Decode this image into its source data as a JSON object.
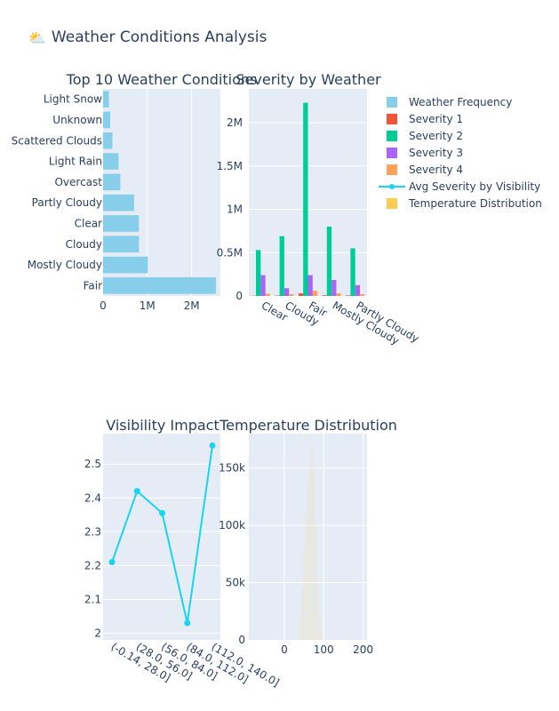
{
  "title": "Weather Conditions Analysis",
  "title_icon": "sun-behind-cloud-icon",
  "colors": {
    "frequency": "#87ceeb",
    "severity1": "#ef553b",
    "severity2": "#00cc96",
    "severity3": "#ab63fa",
    "severity4": "#ffa15a",
    "visibility": "#19d3f3",
    "temperature": "#fecb52",
    "plot_bg": "#e5ecf6"
  },
  "chart_data": [
    {
      "type": "bar",
      "orientation": "horizontal",
      "title": "Top 10 Weather Conditions",
      "categories": [
        "Fair",
        "Mostly Cloudy",
        "Cloudy",
        "Clear",
        "Partly Cloudy",
        "Overcast",
        "Light Rain",
        "Scattered Clouds",
        "Unknown",
        "Light Snow"
      ],
      "values": [
        2550000,
        1010000,
        810000,
        810000,
        700000,
        390000,
        350000,
        210000,
        160000,
        130000
      ],
      "xlim": [
        0,
        2650000
      ],
      "xticks": [
        0,
        1000000,
        2000000
      ],
      "xtick_labels": [
        "0",
        "1M",
        "2M"
      ],
      "series_name": "Weather Frequency"
    },
    {
      "type": "bar",
      "title": "Severity by Weather",
      "categories": [
        "Clear",
        "Cloudy",
        "Fair",
        "Mostly Cloudy",
        "Partly Cloudy"
      ],
      "series": [
        {
          "name": "Severity 1",
          "values": [
            3000,
            5000,
            30000,
            8000,
            6000
          ]
        },
        {
          "name": "Severity 2",
          "values": [
            530000,
            690000,
            2230000,
            800000,
            550000
          ]
        },
        {
          "name": "Severity 3",
          "values": [
            240000,
            90000,
            240000,
            185000,
            125000
          ]
        },
        {
          "name": "Severity 4",
          "values": [
            25000,
            20000,
            60000,
            30000,
            20000
          ]
        }
      ],
      "ylim": [
        0,
        2390000
      ],
      "yticks": [
        0,
        500000,
        1000000,
        1500000,
        2000000
      ],
      "ytick_labels": [
        "0",
        "0.5M",
        "1M",
        "1.5M",
        "2M"
      ]
    },
    {
      "type": "line",
      "title": "Visibility Impact",
      "series_name": "Avg Severity by Visibility",
      "categories": [
        "(-0.14, 28.0]",
        "(28.0, 56.0]",
        "(56.0, 84.0]",
        "(84.0, 112.0]",
        "(112.0, 140.0]"
      ],
      "values": [
        2.21,
        2.42,
        2.355,
        2.03,
        2.555
      ],
      "ylim": [
        1.98,
        2.59
      ],
      "yticks": [
        2,
        2.1,
        2.2,
        2.3,
        2.4,
        2.5
      ],
      "ytick_labels": [
        "2",
        "2.1",
        "2.2",
        "2.3",
        "2.4",
        "2.5"
      ]
    },
    {
      "type": "histogram",
      "title": "Temperature Distribution",
      "series_name": "Temperature Distribution",
      "x": [
        40,
        45,
        50,
        55,
        60,
        65,
        70,
        75,
        80,
        85,
        90,
        95
      ],
      "values": [
        20000,
        45000,
        80000,
        110000,
        135000,
        155000,
        170000,
        150000,
        100000,
        55000,
        20000,
        5000
      ],
      "xlim": [
        -90,
        210
      ],
      "xticks": [
        0,
        100,
        200
      ],
      "xtick_labels": [
        "0",
        "100",
        "200"
      ],
      "ylim": [
        0,
        180000
      ],
      "yticks": [
        0,
        50000,
        100000,
        150000
      ],
      "ytick_labels": [
        "0",
        "50k",
        "100k",
        "150k"
      ]
    }
  ],
  "legend": [
    {
      "label": "Weather Frequency",
      "marker": "square",
      "color_key": "frequency"
    },
    {
      "label": "Severity 1",
      "marker": "square",
      "color_key": "severity1"
    },
    {
      "label": "Severity 2",
      "marker": "square",
      "color_key": "severity2"
    },
    {
      "label": "Severity 3",
      "marker": "square",
      "color_key": "severity3"
    },
    {
      "label": "Severity 4",
      "marker": "square",
      "color_key": "severity4"
    },
    {
      "label": "Avg Severity by Visibility",
      "marker": "line",
      "color_key": "visibility"
    },
    {
      "label": "Temperature Distribution",
      "marker": "square",
      "color_key": "temperature"
    }
  ]
}
